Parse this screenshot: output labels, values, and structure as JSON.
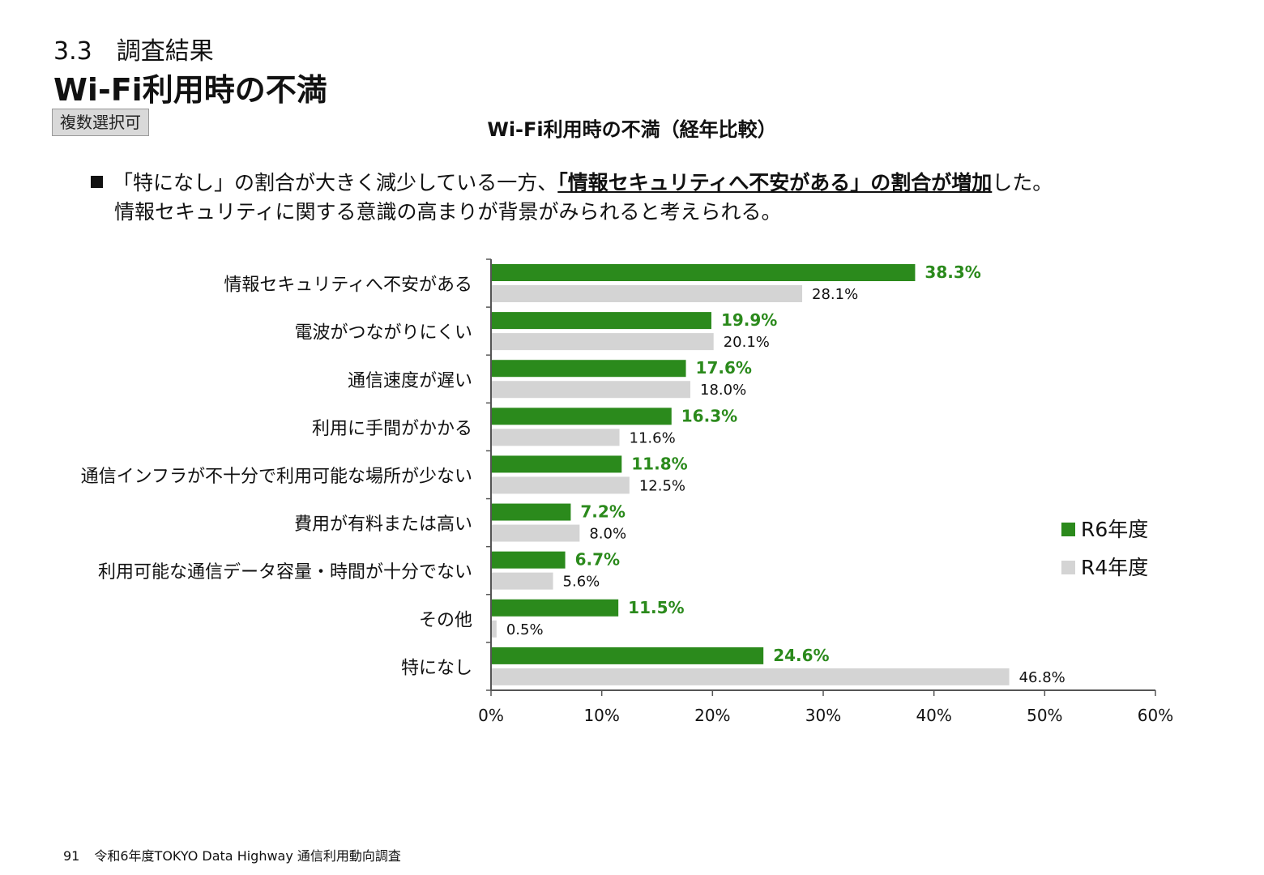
{
  "header": {
    "section": "3.3　調査結果",
    "title": "Wi-Fi利用時の不満",
    "badge": "複数選択可"
  },
  "summary": {
    "line1_a": "「特になし」の割合が大きく減少している一方、",
    "line1_b": "「情報セキュリティへ不安がある」の割合が増加",
    "line1_c": "した。",
    "line2": "情報セキュリティに関する意識の高まりが背景がみられると考えられる。"
  },
  "chart_data": {
    "type": "bar",
    "orientation": "horizontal",
    "title": "Wi-Fi利用時の不満（経年比較）",
    "categories": [
      "情報セキュリティへ不安がある",
      "電波がつながりにくい",
      "通信速度が遅い",
      "利用に手間がかかる",
      "通信インフラが不十分で利用可能な場所が少ない",
      "費用が有料または高い",
      "利用可能な通信データ容量・時間が十分でない",
      "その他",
      "特になし"
    ],
    "series": [
      {
        "name": "R6年度",
        "color": "#2b8a1c",
        "values": [
          38.3,
          19.9,
          17.6,
          16.3,
          11.8,
          7.2,
          6.7,
          11.5,
          24.6
        ]
      },
      {
        "name": "R4年度",
        "color": "#d4d4d4",
        "values": [
          28.1,
          20.1,
          18.0,
          11.6,
          12.5,
          8.0,
          5.6,
          0.5,
          46.8
        ]
      }
    ],
    "xlim": [
      0,
      60
    ],
    "xticks": [
      0,
      10,
      20,
      30,
      40,
      50,
      60
    ],
    "tick_suffix": "%",
    "legend_position": "right",
    "grid": false
  },
  "footer": {
    "page": "91",
    "text": "令和6年度TOKYO Data Highway 通信利用動向調査"
  }
}
